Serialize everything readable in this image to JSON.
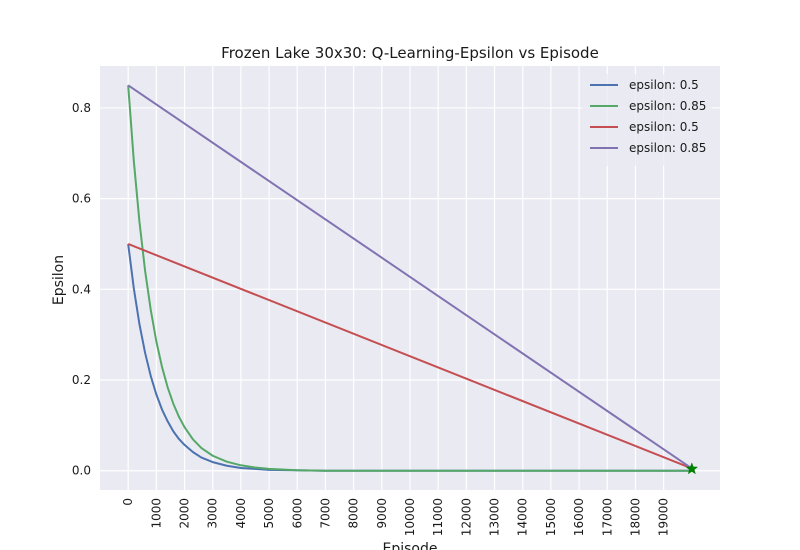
{
  "chart_data": {
    "type": "line",
    "title": "Frozen Lake 30x30: Q-Learning-Epsilon vs Episode",
    "xlabel": "Episode",
    "ylabel": "Epsilon",
    "xlim": [
      -1000,
      21000
    ],
    "ylim": [
      -0.0425,
      0.8925
    ],
    "x_ticks": [
      0,
      1000,
      2000,
      3000,
      4000,
      5000,
      6000,
      7000,
      8000,
      9000,
      10000,
      11000,
      12000,
      13000,
      14000,
      15000,
      16000,
      17000,
      18000,
      19000
    ],
    "y_ticks": [
      0.0,
      0.2,
      0.4,
      0.6,
      0.8
    ],
    "x_tick_labels": [
      "0",
      "1000",
      "2000",
      "3000",
      "4000",
      "5000",
      "6000",
      "7000",
      "8000",
      "9000",
      "10000",
      "11000",
      "12000",
      "13000",
      "14000",
      "15000",
      "16000",
      "17000",
      "18000",
      "19000"
    ],
    "y_tick_labels": [
      "0.0",
      "0.2",
      "0.4",
      "0.6",
      "0.8"
    ],
    "grid": true,
    "legend_position": "top-right",
    "background_color": "#eaeaf2",
    "series": [
      {
        "name": "epsilon: 0.5",
        "color": "#4c72b0",
        "x": [
          0,
          200,
          400,
          600,
          800,
          1000,
          1200,
          1400,
          1600,
          1800,
          2000,
          2300,
          2600,
          3000,
          3500,
          4000,
          4500,
          5000,
          6000,
          7000,
          8000,
          10000,
          12000,
          14000,
          16000,
          18000,
          20000
        ],
        "y": [
          0.5,
          0.402,
          0.323,
          0.26,
          0.209,
          0.168,
          0.135,
          0.109,
          0.087,
          0.07,
          0.057,
          0.041,
          0.029,
          0.019,
          0.011,
          0.006,
          0.004,
          0.002,
          0.001,
          0.0,
          0.0,
          0.0,
          0.0,
          0.0,
          0.0,
          0.0,
          0.0
        ]
      },
      {
        "name": "epsilon: 0.85",
        "color": "#55a868",
        "x": [
          0,
          200,
          400,
          600,
          800,
          1000,
          1200,
          1400,
          1600,
          1800,
          2000,
          2300,
          2600,
          3000,
          3500,
          4000,
          4500,
          5000,
          6000,
          7000,
          8000,
          10000,
          12000,
          14000,
          16000,
          18000,
          20000
        ],
        "y": [
          0.85,
          0.683,
          0.549,
          0.441,
          0.355,
          0.285,
          0.229,
          0.184,
          0.148,
          0.119,
          0.096,
          0.069,
          0.05,
          0.033,
          0.02,
          0.012,
          0.007,
          0.004,
          0.001,
          0.0,
          0.0,
          0.0,
          0.0,
          0.0,
          0.0,
          0.0,
          0.0
        ]
      },
      {
        "name": "epsilon: 0.5",
        "color": "#c44e52",
        "x": [
          0,
          20000
        ],
        "y": [
          0.5,
          0.005
        ]
      },
      {
        "name": "epsilon: 0.85",
        "color": "#8172b2",
        "x": [
          0,
          20000
        ],
        "y": [
          0.85,
          0.005
        ]
      }
    ],
    "markers": [
      {
        "x": 20000,
        "y": 0.004,
        "shape": "star",
        "color": "#008000"
      }
    ]
  }
}
